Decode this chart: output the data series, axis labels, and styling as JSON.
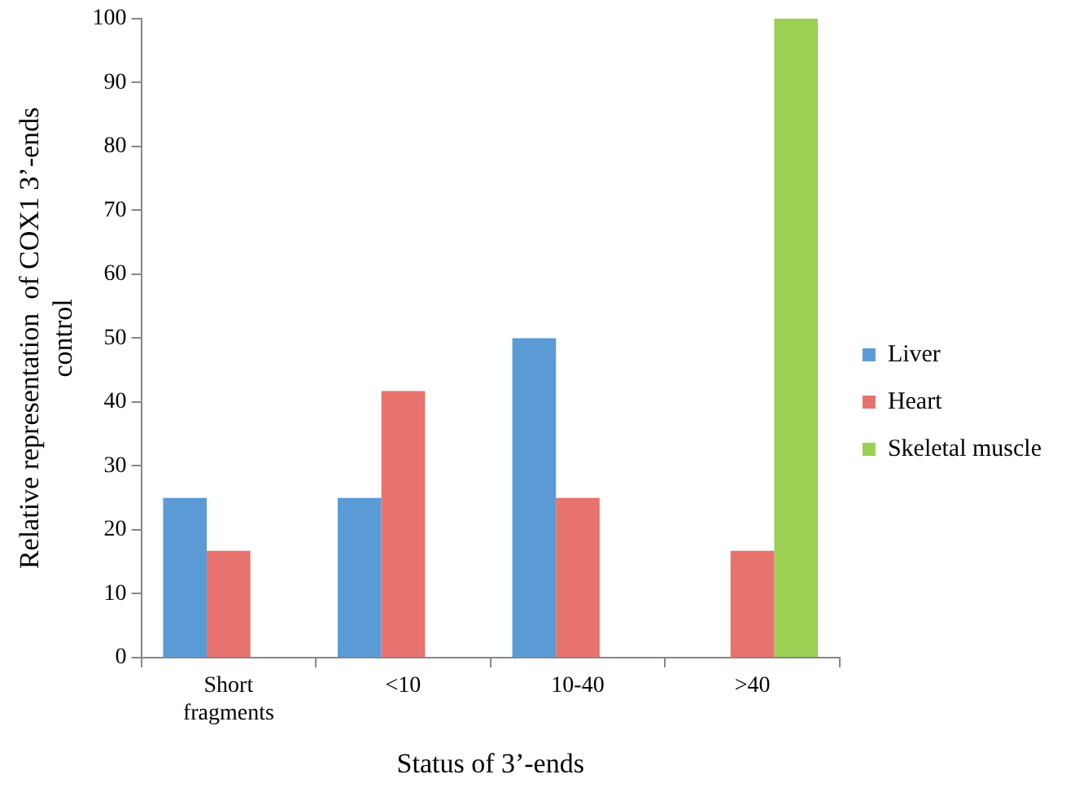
{
  "chart_data": {
    "type": "bar",
    "xlabel": "Status of 3’-ends",
    "ylabel": "Relative representation  of COX1 3’-ends control",
    "categories": [
      "Short fragments",
      "<10",
      "10-40",
      ">40"
    ],
    "series": [
      {
        "name": "Liver",
        "color": "#5b9bd5",
        "values": [
          25,
          25,
          50,
          0
        ]
      },
      {
        "name": "Heart",
        "color": "#e8726d",
        "values": [
          16.7,
          41.7,
          25,
          16.7
        ]
      },
      {
        "name": "Skeletal muscle",
        "color": "#9bd054",
        "values": [
          0,
          0,
          0,
          100
        ]
      }
    ],
    "ylim": [
      0,
      100
    ],
    "yticks": [
      0,
      10,
      20,
      30,
      40,
      50,
      60,
      70,
      80,
      90,
      100
    ],
    "grid": false,
    "legend": "right"
  }
}
